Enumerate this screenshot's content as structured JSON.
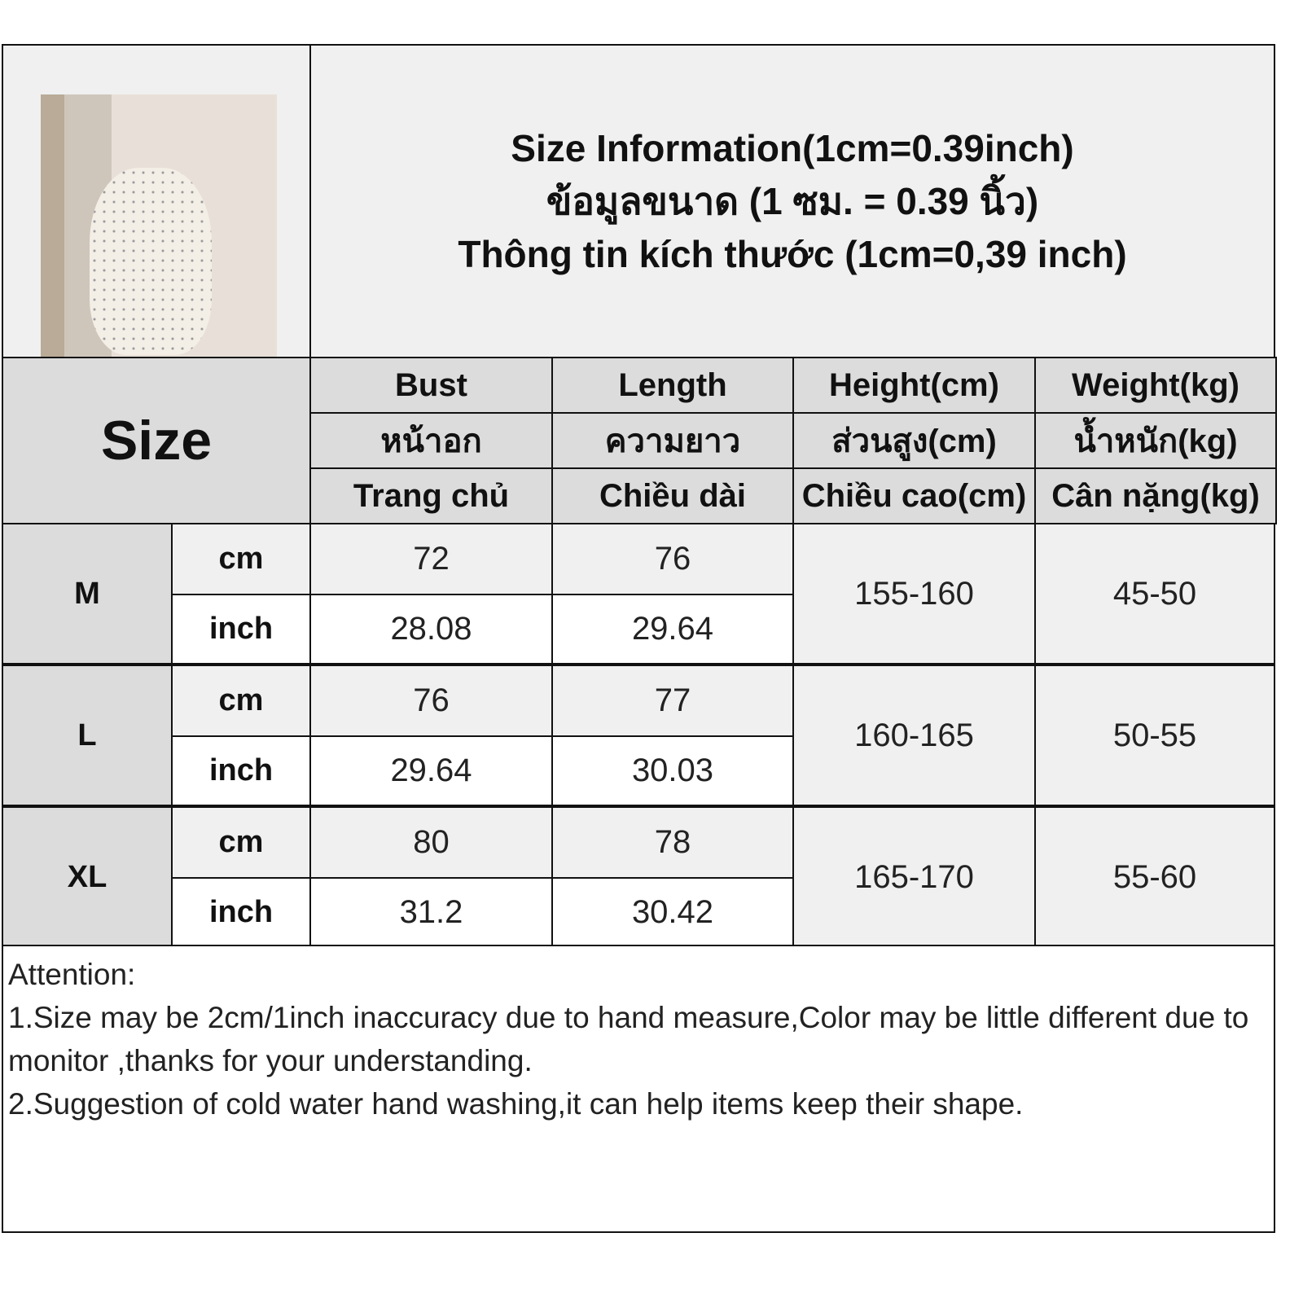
{
  "title": {
    "line1": "Size Information(1cm=0.39inch)",
    "line2": "ข้อมูลขนาด (1 ซม. = 0.39 นิ้ว)",
    "line3": "Thông tin kích thước (1cm=0,39 inch)"
  },
  "size_label": "Size",
  "headers": [
    {
      "en": "Bust",
      "th": "หน้าอก",
      "vi": "Trang chủ"
    },
    {
      "en": "Length",
      "th": "ความยาว",
      "vi": "Chiều dài"
    },
    {
      "en": "Height(cm)",
      "th": "ส่วนสูง(cm)",
      "vi": "Chiều cao(cm)"
    },
    {
      "en": "Weight(kg)",
      "th": "น้ำหนัก(kg)",
      "vi": "Cân nặng(kg)"
    }
  ],
  "rows": [
    {
      "size": "M",
      "cm_label": "cm",
      "inch_label": "inch",
      "bust_cm": "72",
      "length_cm": "76",
      "bust_inch": "28.08",
      "length_inch": "29.64",
      "height": "155-160",
      "weight": "45-50"
    },
    {
      "size": "L",
      "cm_label": "cm",
      "inch_label": "inch",
      "bust_cm": "76",
      "length_cm": "77",
      "bust_inch": "29.64",
      "length_inch": "30.03",
      "height": "160-165",
      "weight": "50-55"
    },
    {
      "size": "XL",
      "cm_label": "cm",
      "inch_label": "inch",
      "bust_cm": "80",
      "length_cm": "78",
      "bust_inch": "31.2",
      "length_inch": "30.42",
      "height": "165-170",
      "weight": "55-60"
    }
  ],
  "attention": {
    "heading": "Attention:",
    "note1": "1.Size may be 2cm/1inch inaccuracy due to hand measure,Color may be little different due to monitor ,thanks for your understanding.",
    "note2": "2.Suggestion of cold water hand washing,it can help items keep their shape."
  }
}
